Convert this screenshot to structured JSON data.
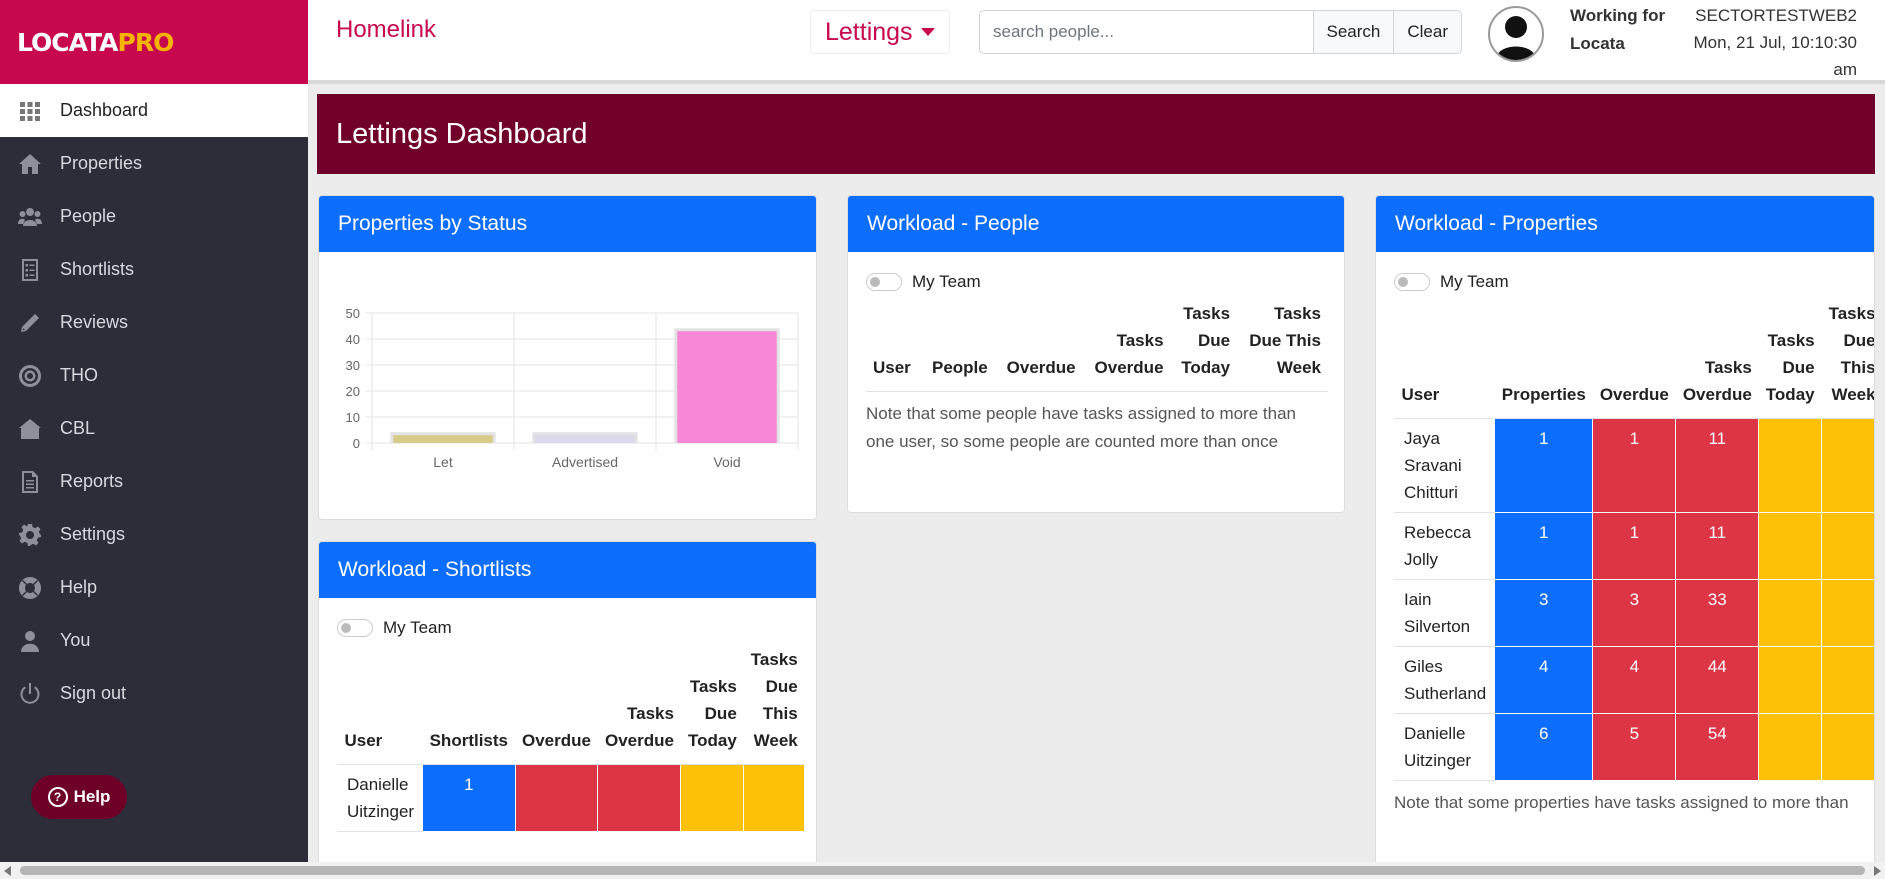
{
  "logo": {
    "text_main": "LOCATA",
    "text_pro": "PRO"
  },
  "sidebar": {
    "items": [
      {
        "label": "Dashboard",
        "icon": "grid-icon",
        "active": true
      },
      {
        "label": "Properties",
        "icon": "house-icon"
      },
      {
        "label": "People",
        "icon": "people-icon"
      },
      {
        "label": "Shortlists",
        "icon": "list-icon"
      },
      {
        "label": "Reviews",
        "icon": "pencil-icon"
      },
      {
        "label": "THO",
        "icon": "target-icon"
      },
      {
        "label": "CBL",
        "icon": "home-icon"
      },
      {
        "label": "Reports",
        "icon": "document-icon"
      },
      {
        "label": "Settings",
        "icon": "gear-icon"
      },
      {
        "label": "Help",
        "icon": "lifebuoy-icon"
      },
      {
        "label": "You",
        "icon": "user-icon"
      },
      {
        "label": "Sign out",
        "icon": "power-icon"
      }
    ],
    "help_pill": "Help"
  },
  "header": {
    "app_title": "Homelink",
    "module": "Lettings",
    "search_placeholder": "search people...",
    "search_label": "Search",
    "clear_label": "Clear",
    "working_line1": "Working for",
    "working_line2": "Locata",
    "org_code": "SECTORTESTWEB2",
    "date_line1": "Mon, 21 Jul, 10:10:30",
    "date_line2": "am"
  },
  "banner": {
    "title": "Lettings Dashboard"
  },
  "properties_by_status": {
    "title": "Properties by Status",
    "chart_data": {
      "type": "bar",
      "categories": [
        "Let",
        "Advertised",
        "Void"
      ],
      "values": [
        3,
        3,
        43
      ],
      "ylim": [
        0,
        50
      ],
      "yticks": [
        0,
        10,
        20,
        30,
        40,
        50
      ],
      "colors": [
        "#d8cc8a",
        "#dcd9ef",
        "#f587d4"
      ],
      "grid": true
    }
  },
  "workload_people": {
    "title": "Workload - People",
    "toggle_label": "My Team",
    "headers": [
      [
        "User"
      ],
      [
        "People"
      ],
      [
        "Overdue"
      ],
      [
        "Tasks",
        "Overdue"
      ],
      [
        "Tasks",
        "Due",
        "Today"
      ],
      [
        "Tasks",
        "Due This",
        "Week"
      ]
    ],
    "note": "Note that some people have tasks assigned to more than one user, so some people are counted more than once"
  },
  "workload_properties": {
    "title": "Workload - Properties",
    "toggle_label": "My Team",
    "headers": [
      [
        "User"
      ],
      [
        "Properties"
      ],
      [
        "Overdue"
      ],
      [
        "Tasks",
        "Overdue"
      ],
      [
        "Tasks",
        "Due",
        "Today"
      ],
      [
        "Tasks",
        "Due",
        "This",
        "Week"
      ]
    ],
    "rows": [
      {
        "user": [
          "Jaya",
          "Sravani",
          "Chitturi"
        ],
        "properties": "1",
        "overdue": "1",
        "tasks_overdue": "11",
        "due_today": "",
        "due_week": ""
      },
      {
        "user": [
          "Rebecca",
          "Jolly"
        ],
        "properties": "1",
        "overdue": "1",
        "tasks_overdue": "11",
        "due_today": "",
        "due_week": ""
      },
      {
        "user": [
          "Iain",
          "Silverton"
        ],
        "properties": "3",
        "overdue": "3",
        "tasks_overdue": "33",
        "due_today": "",
        "due_week": ""
      },
      {
        "user": [
          "Giles",
          "Sutherland"
        ],
        "properties": "4",
        "overdue": "4",
        "tasks_overdue": "44",
        "due_today": "",
        "due_week": ""
      },
      {
        "user": [
          "Danielle",
          "Uitzinger"
        ],
        "properties": "6",
        "overdue": "5",
        "tasks_overdue": "54",
        "due_today": "",
        "due_week": ""
      }
    ],
    "note": "Note that some properties have tasks assigned to more than"
  },
  "workload_shortlists": {
    "title": "Workload - Shortlists",
    "toggle_label": "My Team",
    "headers": [
      [
        "User"
      ],
      [
        "Shortlists"
      ],
      [
        "Overdue"
      ],
      [
        "Tasks",
        "Overdue"
      ],
      [
        "Tasks",
        "Due",
        "Today"
      ],
      [
        "Tasks",
        "Due",
        "This",
        "Week"
      ]
    ],
    "rows": [
      {
        "user": [
          "Danielle",
          "Uitzinger"
        ],
        "shortlists": "1",
        "overdue": "",
        "tasks_overdue": "",
        "due_today": "",
        "due_week": ""
      }
    ]
  },
  "colors": {
    "brand": "#c8084e",
    "banner": "#70002a",
    "card_head": "#0d6efd",
    "blue": "#0d6efd",
    "red": "#dc3545",
    "amber": "#ffc107"
  }
}
